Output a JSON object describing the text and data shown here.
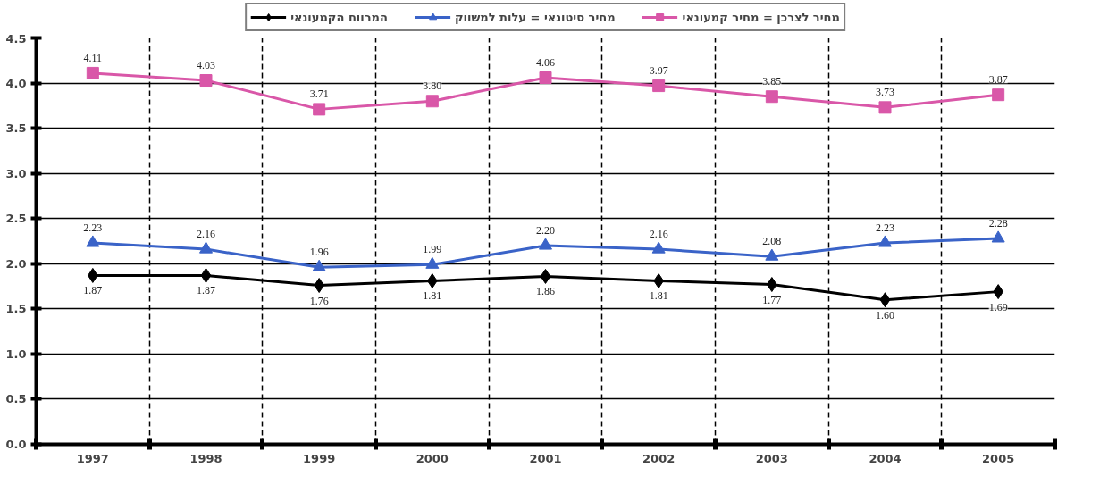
{
  "chart_data": {
    "type": "line",
    "categories": [
      "1997",
      "1998",
      "1999",
      "2000",
      "2001",
      "2002",
      "2003",
      "2004",
      "2005"
    ],
    "series": [
      {
        "name": "מחיר לצרכן = מחיר קמעונאי",
        "color": "#d957a8",
        "marker": "square",
        "values": [
          4.11,
          4.03,
          3.71,
          3.8,
          4.06,
          3.97,
          3.85,
          3.73,
          3.87
        ],
        "value_labels": [
          "4.11",
          "4.03",
          "3.71",
          "3.80",
          "4.06",
          "3.97",
          "3.85",
          "3.73",
          "3.87"
        ]
      },
      {
        "name": "מחיר סיטונאי = עלות למשווק",
        "color": "#3a63c8",
        "marker": "triangle",
        "values": [
          2.23,
          2.16,
          1.96,
          1.99,
          2.2,
          2.16,
          2.08,
          2.23,
          2.28
        ],
        "value_labels": [
          "2.23",
          "2.16",
          "1.96",
          "1.99",
          "2.20",
          "2.16",
          "2.08",
          "2.23",
          "2.28"
        ]
      },
      {
        "name": "המרווח הקמעונאי",
        "color": "#000000",
        "marker": "diamond",
        "values": [
          1.87,
          1.87,
          1.76,
          1.81,
          1.86,
          1.81,
          1.77,
          1.6,
          1.69
        ],
        "value_labels": [
          "1.87",
          "1.87",
          "1.76",
          "1.81",
          "1.86",
          "1.81",
          "1.77",
          "1.60",
          "1.69"
        ]
      }
    ],
    "ylim": [
      0,
      4.5
    ],
    "yticks": [
      {
        "value": 0,
        "label": "0.0"
      },
      {
        "value": 0.5,
        "label": "0.5"
      },
      {
        "value": 1,
        "label": "1.0"
      },
      {
        "value": 1.5,
        "label": "1.5"
      },
      {
        "value": 2,
        "label": "2.0"
      },
      {
        "value": 2.5,
        "label": "2.5"
      },
      {
        "value": 3,
        "label": "3.0"
      },
      {
        "value": 3.5,
        "label": "3.5"
      },
      {
        "value": 4,
        "label": "4.0"
      },
      {
        "value": 4.5,
        "label": "4.5"
      }
    ],
    "grid": true,
    "legend": "top",
    "line_style": "solid"
  }
}
